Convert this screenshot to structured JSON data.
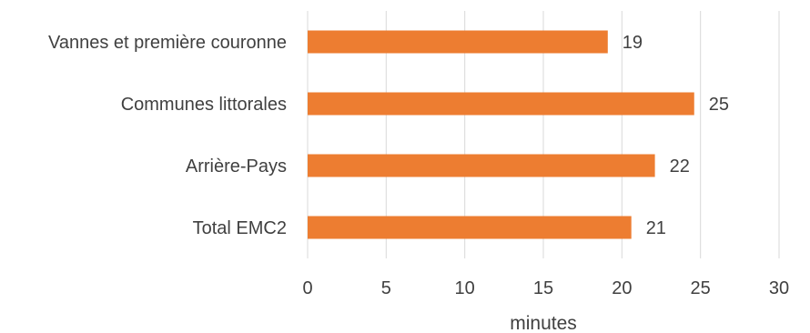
{
  "chart_data": {
    "type": "bar",
    "orientation": "horizontal",
    "categories": [
      "Vannes et première couronne",
      "Communes littorales",
      "Arrière-Pays",
      "Total EMC2"
    ],
    "values": [
      19,
      25,
      22,
      21
    ],
    "bar_values": [
      19.1,
      24.6,
      22.1,
      20.6
    ],
    "data_labels": [
      "19",
      "25",
      "22",
      "21"
    ],
    "xlabel": "minutes",
    "ylabel": "",
    "xlim": [
      0,
      30
    ],
    "xticks": [
      "0",
      "5",
      "10",
      "15",
      "20",
      "25",
      "30"
    ],
    "grid": true,
    "legend": "none",
    "colors": {
      "bar": "#ED7D31",
      "grid": "#D9D9D9",
      "text": "#404040"
    }
  }
}
